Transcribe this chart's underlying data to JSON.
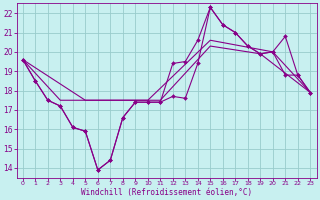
{
  "xlabel": "Windchill (Refroidissement éolien,°C)",
  "bg_color": "#c8f0f0",
  "line_color": "#880088",
  "grid_color": "#99cccc",
  "xlim": [
    -0.5,
    23.5
  ],
  "ylim": [
    13.5,
    22.5
  ],
  "yticks": [
    14,
    15,
    16,
    17,
    18,
    19,
    20,
    21,
    22
  ],
  "xticks": [
    0,
    1,
    2,
    3,
    4,
    5,
    6,
    7,
    8,
    9,
    10,
    11,
    12,
    13,
    14,
    15,
    16,
    17,
    18,
    19,
    20,
    21,
    22,
    23
  ],
  "series": [
    {
      "x": [
        0,
        1,
        2,
        3,
        4,
        5,
        6,
        7,
        8,
        9,
        10,
        11,
        12,
        13,
        14,
        15,
        16,
        17,
        18,
        19,
        20,
        21,
        22,
        23
      ],
      "y": [
        19.6,
        18.5,
        17.5,
        17.2,
        16.1,
        15.9,
        13.9,
        14.4,
        16.6,
        17.4,
        17.4,
        17.4,
        17.7,
        17.6,
        19.4,
        22.3,
        21.4,
        21.0,
        20.3,
        19.9,
        20.0,
        18.8,
        18.8,
        17.9
      ],
      "marker": true
    },
    {
      "x": [
        0,
        1,
        2,
        3,
        4,
        5,
        6,
        7,
        8,
        9,
        10,
        11,
        12,
        13,
        14,
        15,
        16,
        17,
        18,
        19,
        20,
        21,
        22,
        23
      ],
      "y": [
        19.6,
        18.5,
        17.5,
        17.2,
        16.1,
        15.9,
        13.9,
        14.4,
        16.6,
        17.4,
        17.4,
        17.4,
        19.4,
        19.5,
        20.6,
        22.3,
        21.4,
        21.0,
        20.3,
        19.9,
        20.0,
        20.8,
        18.8,
        17.9
      ],
      "marker": true
    },
    {
      "x": [
        0,
        3,
        7,
        11,
        15,
        19,
        23
      ],
      "y": [
        19.6,
        17.5,
        17.5,
        17.5,
        20.3,
        19.9,
        17.9
      ],
      "marker": false
    },
    {
      "x": [
        0,
        5,
        10,
        15,
        20,
        23
      ],
      "y": [
        19.6,
        17.5,
        17.5,
        20.6,
        20.0,
        17.9
      ],
      "marker": false
    }
  ]
}
